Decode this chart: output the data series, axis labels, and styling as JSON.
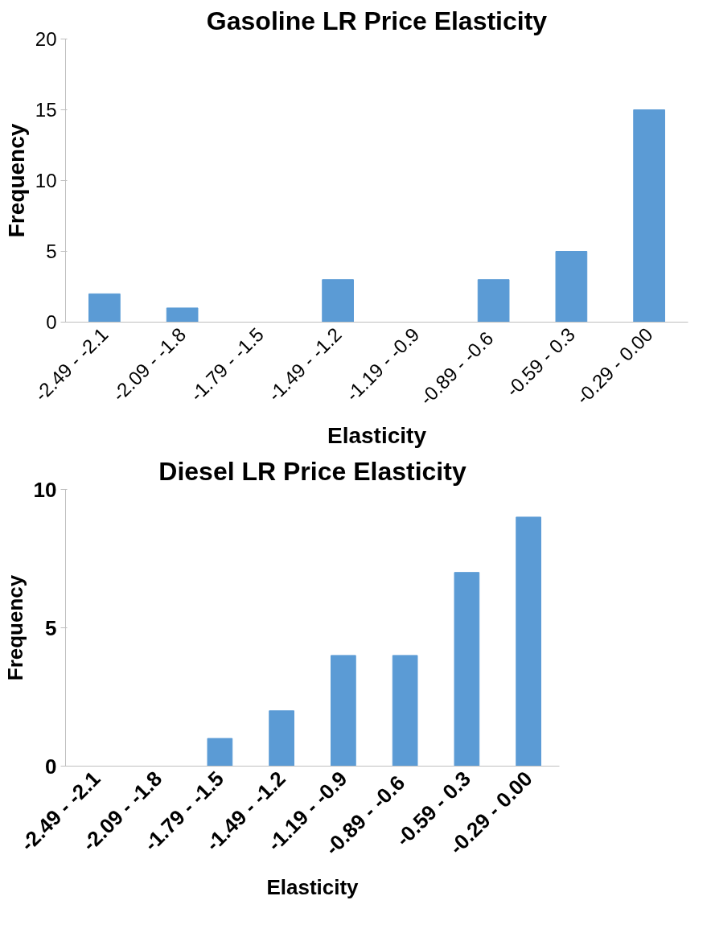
{
  "chart_data": [
    {
      "type": "bar",
      "title": "Gasoline LR Price Elasticity",
      "xlabel": "Elasticity",
      "ylabel": "Frequency",
      "categories": [
        "-2.49 - -2.1",
        "-2.09 - -1.8",
        "-1.79 - -1.5",
        "-1.49 - -1.2",
        "-1.19 - -0.9",
        "-0.89 -  -0.6",
        "-0.59 - 0.3",
        "-0.29 - 0.00"
      ],
      "series": [
        {
          "color": "#5b9bd5",
          "values": [
            2,
            1,
            0,
            3,
            0,
            3,
            5,
            15
          ]
        }
      ],
      "ylim": [
        0,
        20
      ],
      "yticks": [
        0,
        5,
        10,
        15,
        20
      ],
      "grid": false
    },
    {
      "type": "bar",
      "title": "Diesel LR Price Elasticity",
      "xlabel": "Elasticity",
      "ylabel": "Frequency",
      "categories": [
        "-2.49 - -2.1",
        "-2.09 - -1.8",
        "-1.79 - -1.5",
        "-1.49 - -1.2",
        "-1.19 - -0.9",
        "-0.89 -  -0.6",
        "-0.59 - 0.3",
        "-0.29 - 0.00"
      ],
      "series": [
        {
          "color": "#5b9bd5",
          "values": [
            0,
            0,
            1,
            2,
            4,
            4,
            7,
            9
          ]
        }
      ],
      "ylim": [
        0,
        10
      ],
      "yticks": [
        0,
        5,
        10
      ],
      "grid": false
    }
  ]
}
